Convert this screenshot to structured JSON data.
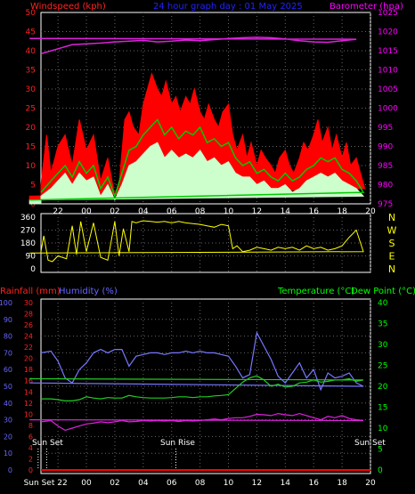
{
  "header": {
    "windspeed_label": "Windspeed (kph)",
    "title": "24 hour graph day : 01 May 2025",
    "barometer_label": "Barometer (hpa)"
  },
  "footer": {
    "rainfall_label": "Rainfall (mm)",
    "humidity_label": "Humidity (%)",
    "temperature_label": "Temperature (°C)",
    "dewpoint_label": "Dew Point (°C)",
    "sunset_label": "Sun Set",
    "sunrise_label": "Sun Rise",
    "sunset2_label": "Sun Set",
    "bottom_sunset_label": "Sun Set"
  },
  "colors": {
    "wind_gust": "#ff0000",
    "wind_avg": "#00cc00",
    "wind_speed": "#ccffcc",
    "barometer": "#dd22dd",
    "direction": "#ffff00",
    "humidity": "#7777ff",
    "temperature": "#22cc22",
    "dewpoint": "#dd22dd",
    "rain": "#ff0000",
    "left_axis_wind": "#ff2222",
    "right_axis_baro": "#ff00ff",
    "title": "#2222ff",
    "temp_axis": "#00ff00",
    "rain_axis": "#ff2222",
    "hum_axis": "#6666ff",
    "sun_marker": "#ffffff",
    "dir_axis": "#ffff00"
  },
  "chart_data": [
    {
      "type": "line",
      "id": "wind",
      "xlabels": [
        "22",
        "00",
        "02",
        "04",
        "06",
        "08",
        "10",
        "12",
        "14",
        "16",
        "18",
        "20"
      ],
      "ylim": [
        0,
        50
      ],
      "yticks": [
        0,
        5,
        10,
        15,
        20,
        25,
        30,
        35,
        40,
        45,
        50
      ],
      "y2lim": [
        975,
        1025
      ],
      "y2ticks": [
        975,
        980,
        985,
        990,
        995,
        1000,
        1005,
        1010,
        1015,
        1020,
        1025
      ],
      "series": [
        {
          "key": "gust",
          "x": [
            20.8,
            21.2,
            21.5,
            22.0,
            22.5,
            23.0,
            23.5,
            0.0,
            0.5,
            1.0,
            1.5,
            2.0,
            2.3,
            2.7,
            3.0,
            3.3,
            3.7,
            4.0,
            4.3,
            4.6,
            5.0,
            5.3,
            5.6,
            6.0,
            6.3,
            6.6,
            7.0,
            7.3,
            7.6,
            8.0,
            8.3,
            8.6,
            9.0,
            9.3,
            9.6,
            10.0,
            10.3,
            10.6,
            11.0,
            11.3,
            11.6,
            12.0,
            12.3,
            12.6,
            13.0,
            13.3,
            13.6,
            14.0,
            14.3,
            14.6,
            15.0,
            15.3,
            15.6,
            16.0,
            16.3,
            16.6,
            17.0,
            17.3,
            17.6,
            18.0,
            18.3,
            18.6,
            19.0,
            19.3,
            19.6,
            20.0
          ],
          "y": [
            5,
            18,
            8,
            15,
            18,
            10,
            22,
            14,
            18,
            6,
            12,
            2,
            5,
            22,
            24,
            20,
            18,
            26,
            30,
            34,
            30,
            28,
            32,
            26,
            28,
            24,
            28,
            26,
            30,
            24,
            22,
            26,
            22,
            20,
            24,
            26,
            18,
            14,
            18,
            12,
            16,
            10,
            14,
            12,
            10,
            8,
            12,
            14,
            10,
            8,
            12,
            16,
            14,
            18,
            22,
            16,
            20,
            14,
            18,
            12,
            16,
            10,
            12,
            8,
            4,
            2
          ]
        },
        {
          "key": "avg",
          "x": [
            20.8,
            21.5,
            22.0,
            22.5,
            23.0,
            23.5,
            0.0,
            0.5,
            1.0,
            1.5,
            2.0,
            2.5,
            3.0,
            3.5,
            4.0,
            4.5,
            5.0,
            5.5,
            6.0,
            6.5,
            7.0,
            7.5,
            8.0,
            8.5,
            9.0,
            9.5,
            10.0,
            10.5,
            11.0,
            11.5,
            12.0,
            12.5,
            13.0,
            13.5,
            14.0,
            14.5,
            15.0,
            15.5,
            16.0,
            16.5,
            17.0,
            17.5,
            18.0,
            18.5,
            19.0,
            19.5,
            20.0
          ],
          "y": [
            3,
            6,
            8,
            10,
            7,
            11,
            8,
            10,
            4,
            7,
            2,
            8,
            14,
            15,
            18,
            20,
            22,
            18,
            20,
            17,
            19,
            18,
            20,
            16,
            17,
            15,
            16,
            12,
            10,
            11,
            8,
            9,
            7,
            6,
            8,
            6,
            7,
            9,
            10,
            12,
            11,
            12,
            9,
            8,
            6,
            3,
            1
          ]
        },
        {
          "key": "speed",
          "x": [
            20.8,
            21.5,
            22.0,
            22.5,
            23.0,
            23.5,
            0.0,
            0.5,
            1.0,
            1.5,
            2.0,
            2.5,
            3.0,
            3.5,
            4.0,
            4.5,
            5.0,
            5.5,
            6.0,
            6.5,
            7.0,
            7.5,
            8.0,
            8.5,
            9.0,
            9.5,
            10.0,
            10.5,
            11.0,
            11.5,
            12.0,
            12.5,
            13.0,
            13.5,
            14.0,
            14.5,
            15.0,
            15.5,
            16.0,
            16.5,
            17.0,
            17.5,
            18.0,
            18.5,
            19.0,
            19.5,
            20.0
          ],
          "y": [
            2,
            4,
            6,
            8,
            5,
            8,
            6,
            7,
            2,
            5,
            1,
            5,
            10,
            11,
            13,
            15,
            16,
            12,
            14,
            12,
            13,
            12,
            14,
            11,
            12,
            10,
            11,
            8,
            7,
            7,
            5,
            6,
            4,
            4,
            5,
            3,
            4,
            6,
            7,
            8,
            7,
            8,
            6,
            5,
            4,
            2,
            1
          ]
        },
        {
          "key": "baro",
          "x": [
            20.8,
            22.0,
            23.0,
            0.0,
            1.0,
            2.0,
            3.0,
            4.0,
            5.0,
            6.0,
            7.0,
            8.0,
            9.0,
            10.0,
            11.0,
            12.0,
            13.0,
            14.0,
            15.0,
            16.0,
            17.0,
            18.0,
            19.0,
            20.0
          ],
          "y": [
            1014.2,
            1015.5,
            1016.6,
            1016.8,
            1017.0,
            1017.3,
            1017.5,
            1017.7,
            1017.3,
            1017.5,
            1017.8,
            1017.6,
            1017.9,
            1018.2,
            1018.4,
            1018.5,
            1018.4,
            1018.1,
            1017.6,
            1017.3,
            1017.2,
            1017.6,
            1018.0,
            1018.2
          ]
        }
      ]
    },
    {
      "type": "line",
      "id": "direction",
      "ylim": [
        0,
        360
      ],
      "yticks": [
        0,
        90,
        180,
        270,
        360
      ],
      "compass_labels": [
        "N",
        "W",
        "S",
        "E",
        "N"
      ],
      "series": [
        {
          "key": "dir",
          "x": [
            20.8,
            21.0,
            21.3,
            21.6,
            22.0,
            22.3,
            22.6,
            23.0,
            23.3,
            23.6,
            24.0,
            24.5,
            25.0,
            25.5,
            26.0,
            26.3,
            26.6,
            27.0,
            27.2,
            27.5,
            27.8,
            28.0,
            28.5,
            29.0,
            29.5,
            30.0,
            30.5,
            31.0,
            31.5,
            32.0,
            32.5,
            33.0,
            33.5,
            34.0,
            34.3,
            34.6,
            35.0,
            35.5,
            36.0,
            36.5,
            37.0,
            37.5,
            38.0,
            38.5,
            39.0,
            39.5,
            40.0,
            40.5,
            41.0,
            41.5,
            42.0,
            42.5,
            43.0,
            43.5,
            44.0
          ],
          "y": [
            120,
            230,
            60,
            50,
            90,
            80,
            70,
            300,
            100,
            330,
            120,
            320,
            80,
            60,
            330,
            90,
            280,
            120,
            330,
            320,
            330,
            335,
            330,
            325,
            330,
            320,
            330,
            320,
            315,
            310,
            300,
            290,
            310,
            300,
            140,
            160,
            120,
            130,
            150,
            140,
            130,
            150,
            140,
            150,
            130,
            160,
            140,
            150,
            130,
            140,
            160,
            220,
            270,
            120,
            110
          ]
        }
      ]
    },
    {
      "type": "line",
      "id": "thermo",
      "xlabels": [
        "Sun Set 22",
        "00",
        "02",
        "04",
        "06",
        "08",
        "10",
        "12",
        "14",
        "16",
        "18",
        "20"
      ],
      "left_rain_ticks": [
        0,
        2,
        4,
        6,
        8,
        10,
        12,
        14,
        16,
        18,
        20,
        22,
        24,
        26,
        28,
        30
      ],
      "left_hum_ticks": [
        0,
        10,
        20,
        30,
        40,
        50,
        60,
        70,
        80,
        90,
        100
      ],
      "right_temp_ticks": [
        0,
        5,
        10,
        15,
        20,
        25,
        30,
        35,
        40
      ],
      "series": [
        {
          "key": "hum",
          "x": [
            20.8,
            21.5,
            22.0,
            22.5,
            23.0,
            23.5,
            0.0,
            0.5,
            1.0,
            1.5,
            2.0,
            2.5,
            3.0,
            3.5,
            4.0,
            4.5,
            5.0,
            5.5,
            6.0,
            6.5,
            7.0,
            7.5,
            8.0,
            8.5,
            9.0,
            9.5,
            10.0,
            10.5,
            11.0,
            11.5,
            12.0,
            12.5,
            13.0,
            13.5,
            14.0,
            14.5,
            15.0,
            15.5,
            16.0,
            16.5,
            17.0,
            17.5,
            18.0,
            18.5,
            19.0,
            19.5,
            20.0
          ],
          "y": [
            70,
            71,
            65,
            55,
            52,
            60,
            64,
            70,
            72,
            70,
            72,
            72,
            62,
            68,
            69,
            70,
            70,
            69,
            70,
            70,
            71,
            70,
            71,
            70,
            70,
            69,
            68,
            62,
            55,
            57,
            82,
            74,
            66,
            56,
            52,
            58,
            64,
            55,
            60,
            48,
            58,
            55,
            56,
            58,
            52,
            50,
            52
          ]
        },
        {
          "key": "temp",
          "x": [
            20.8,
            21.5,
            22.0,
            22.5,
            23.0,
            23.5,
            0.0,
            0.5,
            1.0,
            1.5,
            2.0,
            2.5,
            3.0,
            3.5,
            4.0,
            4.5,
            5.0,
            5.5,
            6.0,
            6.5,
            7.0,
            7.5,
            8.0,
            8.5,
            9.0,
            9.5,
            10.0,
            10.5,
            11.0,
            11.5,
            12.0,
            12.5,
            13.0,
            13.5,
            14.0,
            14.5,
            15.0,
            15.5,
            16.0,
            16.5,
            17.0,
            17.5,
            18.0,
            18.5,
            19.0,
            19.5,
            20.0
          ],
          "y": [
            17,
            17,
            16.8,
            16.5,
            16.5,
            16.8,
            17.5,
            17.2,
            17.0,
            17.3,
            17.2,
            17.2,
            17.8,
            17.5,
            17.3,
            17.2,
            17.2,
            17.2,
            17.3,
            17.5,
            17.5,
            17.3,
            17.5,
            17.5,
            17.7,
            17.8,
            18.0,
            19.5,
            21.0,
            22.0,
            22.5,
            21.5,
            20.0,
            20.5,
            19.8,
            20.0,
            20.8,
            21.0,
            21.5,
            21.0,
            21.2,
            21.5,
            21.5,
            21.8,
            21.2,
            21.5,
            21.8
          ]
        },
        {
          "key": "dew",
          "x": [
            20.8,
            21.5,
            22.0,
            22.5,
            23.0,
            23.5,
            0.0,
            0.5,
            1.0,
            1.5,
            2.0,
            2.5,
            3.0,
            3.5,
            4.0,
            4.5,
            5.0,
            5.5,
            6.0,
            6.5,
            7.0,
            7.5,
            8.0,
            8.5,
            9.0,
            9.5,
            10.0,
            10.5,
            11.0,
            11.5,
            12.0,
            12.5,
            13.0,
            13.5,
            14.0,
            14.5,
            15.0,
            15.5,
            16.0,
            16.5,
            17.0,
            17.5,
            18.0,
            18.5,
            19.0,
            19.5,
            20.0
          ],
          "y": [
            11.5,
            11.8,
            10.5,
            9.5,
            10.0,
            10.5,
            11.0,
            11.2,
            11.5,
            11.3,
            11.5,
            11.8,
            11.5,
            11.6,
            11.8,
            11.7,
            11.8,
            11.7,
            11.8,
            11.6,
            11.8,
            11.7,
            11.8,
            12.0,
            12.2,
            12.0,
            12.3,
            12.5,
            12.5,
            12.8,
            13.3,
            13.2,
            13.0,
            13.5,
            13.2,
            13.0,
            13.5,
            13.0,
            12.5,
            12.0,
            12.8,
            12.5,
            13.0,
            12.3,
            12.0,
            11.8,
            12.0
          ]
        },
        {
          "key": "rain",
          "x": [
            20.8,
            44.0
          ],
          "y": [
            0,
            0
          ]
        }
      ]
    }
  ]
}
